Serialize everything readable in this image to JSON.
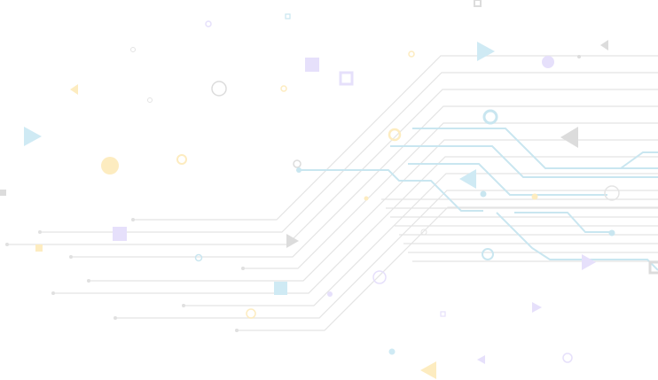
{
  "palette": {
    "line_gray": "#e2e2e2",
    "line_blue": "#c9e6f0",
    "blue": "#cfeaf4",
    "purple": "#e6e0fb",
    "yellow": "#fdecc0",
    "gray": "#dcdcdc"
  }
}
